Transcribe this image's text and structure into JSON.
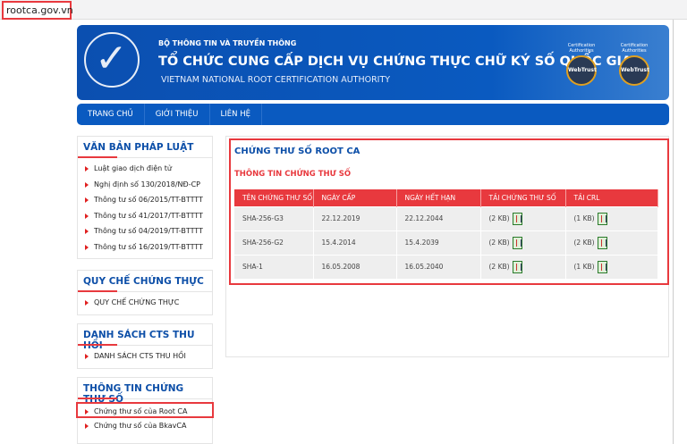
{
  "browser": {
    "url": "rootca.gov.vn"
  },
  "header": {
    "ministry": "BỘ THÔNG TIN VÀ TRUYỀN THÔNG",
    "title": "TỔ CHỨC CUNG CẤP DỊCH VỤ CHỨNG THỰC CHỮ KÝ SỐ QUỐC GIA",
    "subtitle": "VIETNAM NATIONAL ROOT CERTIFICATION AUTHORITY",
    "seals": [
      {
        "caption": "Certification Authorities",
        "name": "WebTrust"
      },
      {
        "caption": "Certification Authorities",
        "name": "WebTrust"
      }
    ]
  },
  "nav": [
    "TRANG CHỦ",
    "GIỚI THIỆU",
    "LIÊN HỆ"
  ],
  "sidebar": [
    {
      "title": "VĂN BẢN PHÁP LUẬT",
      "items": [
        "Luật giao dịch điện tử",
        "Nghị định số 130/2018/NĐ-CP",
        "Thông tư số 06/2015/TT-BTTTT",
        "Thông tư số 41/2017/TT-BTTTT",
        "Thông tư số 04/2019/TT-BTTTT",
        "Thông tư số 16/2019/TT-BTTTT"
      ]
    },
    {
      "title": "QUY CHẾ CHỨNG THỰC",
      "items": [
        "QUY CHẾ CHỨNG THỰC"
      ]
    },
    {
      "title": "DANH SÁCH CTS THU HỒI",
      "items": [
        "DANH SÁCH CTS THU HỒI"
      ]
    },
    {
      "title": "THÔNG TIN CHỨNG THƯ SỐ",
      "items": [
        "Chứng thư số của Root CA",
        "Chứng thư số của BkavCA"
      ]
    }
  ],
  "main": {
    "title": "CHỨNG THƯ SỐ ROOT CA",
    "section": "THÔNG TIN CHỨNG THƯ SỐ",
    "columns": [
      "TÊN CHỨNG THƯ SỐ",
      "NGÀY CẤP",
      "NGÀY HẾT HẠN",
      "TẢI CHỨNG THƯ SỐ",
      "TẢI CRL"
    ],
    "rows": [
      [
        "SHA-256-G3",
        "22.12.2019",
        "22.12.2044",
        "(2 KB)",
        "(1 KB)"
      ],
      [
        "SHA-256-G2",
        "15.4.2014",
        "15.4.2039",
        "(2 KB)",
        "(2 KB)"
      ],
      [
        "SHA-1",
        "16.05.2008",
        "16.05.2040",
        "(2 KB)",
        "(1 KB)"
      ]
    ]
  }
}
